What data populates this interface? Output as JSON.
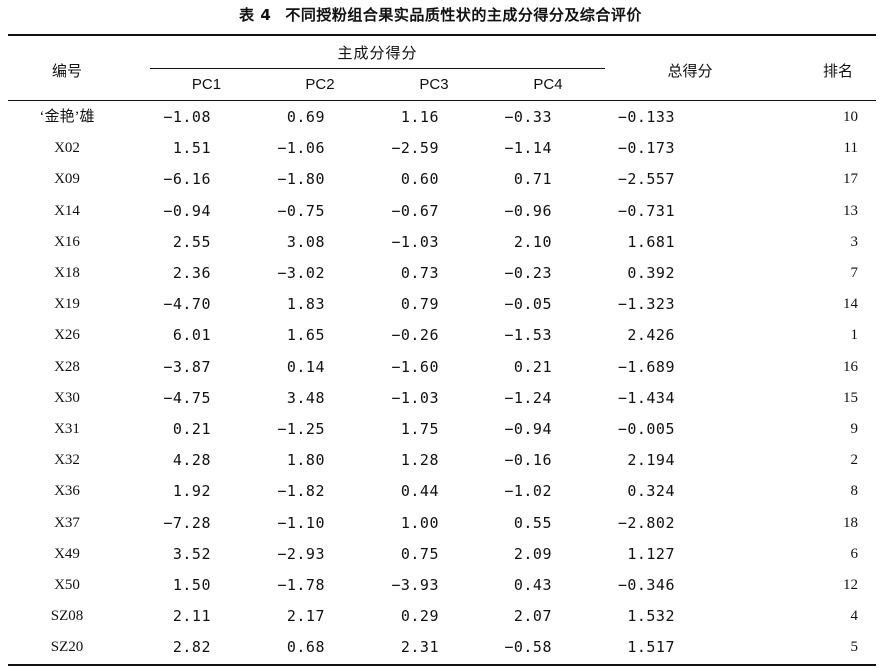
{
  "caption": {
    "label": "表 4",
    "title": "不同授粉组合果实品质性状的主成分得分及综合评价"
  },
  "headers": {
    "id": "编号",
    "group": "主成分得分",
    "pc1": "PC1",
    "pc2": "PC2",
    "pc3": "PC3",
    "pc4": "PC4",
    "total": "总得分",
    "rank": "排名"
  },
  "rows": [
    [
      "‘金艳’雄",
      "−1.08",
      "0.69",
      "1.16",
      "−0.33",
      "−0.133",
      "10"
    ],
    [
      "X02",
      "1.51",
      "−1.06",
      "−2.59",
      "−1.14",
      "−0.173",
      "11"
    ],
    [
      "X09",
      "−6.16",
      "−1.80",
      "0.60",
      "0.71",
      "−2.557",
      "17"
    ],
    [
      "X14",
      "−0.94",
      "−0.75",
      "−0.67",
      "−0.96",
      "−0.731",
      "13"
    ],
    [
      "X16",
      "2.55",
      "3.08",
      "−1.03",
      "2.10",
      "1.681",
      "3"
    ],
    [
      "X18",
      "2.36",
      "−3.02",
      "0.73",
      "−0.23",
      "0.392",
      "7"
    ],
    [
      "X19",
      "−4.70",
      "1.83",
      "0.79",
      "−0.05",
      "−1.323",
      "14"
    ],
    [
      "X26",
      "6.01",
      "1.65",
      "−0.26",
      "−1.53",
      "2.426",
      "1"
    ],
    [
      "X28",
      "−3.87",
      "0.14",
      "−1.60",
      "0.21",
      "−1.689",
      "16"
    ],
    [
      "X30",
      "−4.75",
      "3.48",
      "−1.03",
      "−1.24",
      "−1.434",
      "15"
    ],
    [
      "X31",
      "0.21",
      "−1.25",
      "1.75",
      "−0.94",
      "−0.005",
      "9"
    ],
    [
      "X32",
      "4.28",
      "1.80",
      "1.28",
      "−0.16",
      "2.194",
      "2"
    ],
    [
      "X36",
      "1.92",
      "−1.82",
      "0.44",
      "−1.02",
      "0.324",
      "8"
    ],
    [
      "X37",
      "−7.28",
      "−1.10",
      "1.00",
      "0.55",
      "−2.802",
      "18"
    ],
    [
      "X49",
      "3.52",
      "−2.93",
      "0.75",
      "2.09",
      "1.127",
      "6"
    ],
    [
      "X50",
      "1.50",
      "−1.78",
      "−3.93",
      "0.43",
      "−0.346",
      "12"
    ],
    [
      "SZ08",
      "2.11",
      "2.17",
      "0.29",
      "2.07",
      "1.532",
      "4"
    ],
    [
      "SZ20",
      "2.82",
      "0.68",
      "2.31",
      "−0.58",
      "1.517",
      "5"
    ]
  ]
}
